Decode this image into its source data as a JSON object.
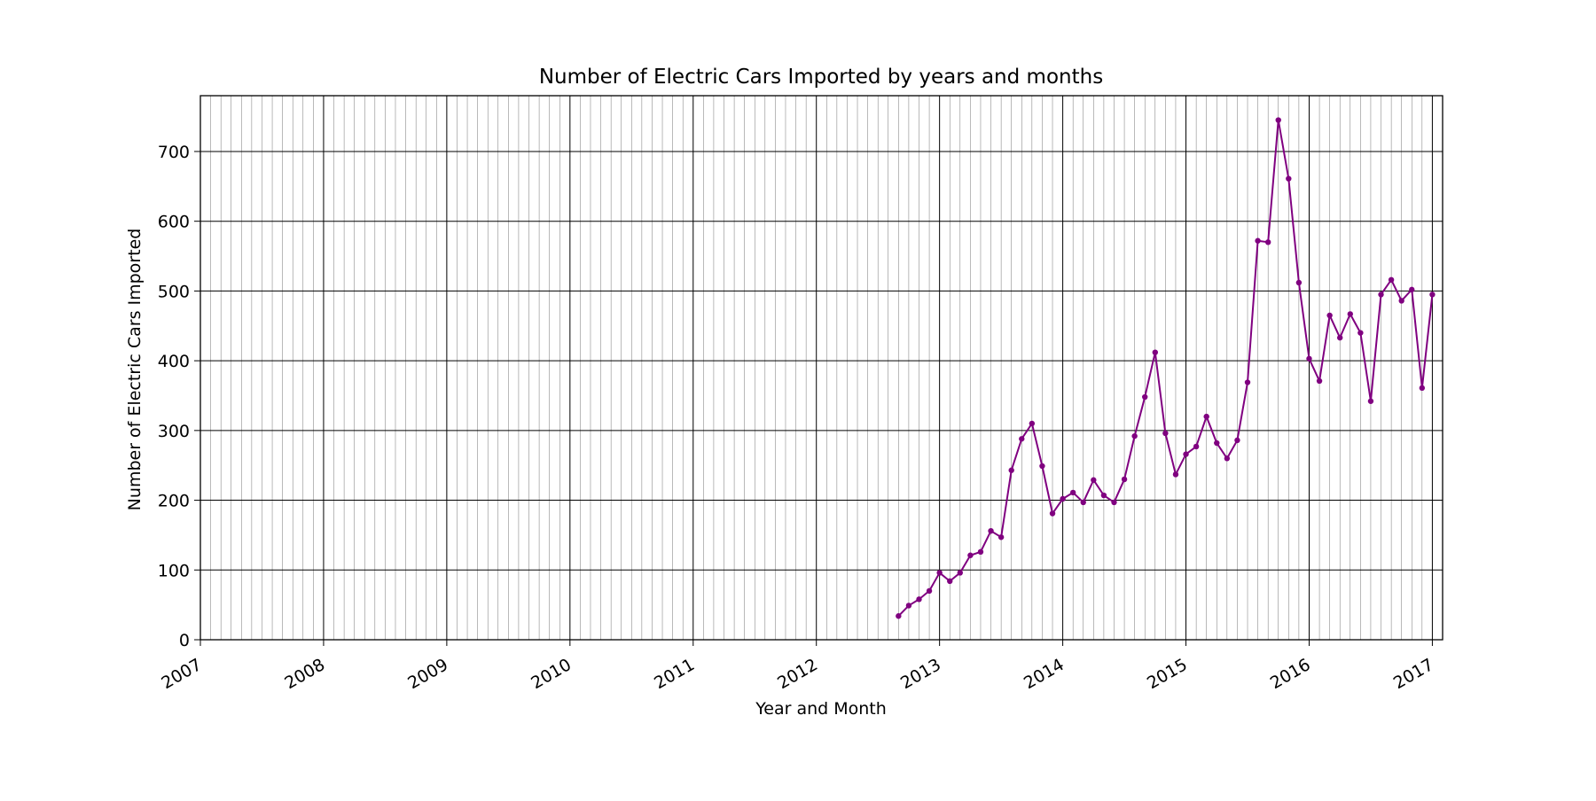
{
  "chart_data": {
    "type": "line",
    "title": "Number of Electric Cars Imported by years and months",
    "xlabel": "Year and Month",
    "ylabel": "Number of Electric Cars Imported",
    "xlim": [
      "2007-01",
      "2017-02"
    ],
    "ylim": [
      0,
      780
    ],
    "x_ticks": [
      "2007",
      "2008",
      "2009",
      "2010",
      "2011",
      "2012",
      "2013",
      "2014",
      "2015",
      "2016",
      "2017"
    ],
    "y_ticks": [
      0,
      100,
      200,
      300,
      400,
      500,
      600,
      700
    ],
    "grid": {
      "major": true,
      "minor": "monthly"
    },
    "series": [
      {
        "color": "#800080",
        "marker": "dot",
        "x": [
          "2012-09",
          "2012-10",
          "2012-11",
          "2012-12",
          "2013-01",
          "2013-02",
          "2013-03",
          "2013-04",
          "2013-05",
          "2013-06",
          "2013-07",
          "2013-08",
          "2013-09",
          "2013-10",
          "2013-11",
          "2013-12",
          "2014-01",
          "2014-02",
          "2014-03",
          "2014-04",
          "2014-05",
          "2014-06",
          "2014-07",
          "2014-08",
          "2014-09",
          "2014-10",
          "2014-11",
          "2014-12",
          "2015-01",
          "2015-02",
          "2015-03",
          "2015-04",
          "2015-05",
          "2015-06",
          "2015-07",
          "2015-08",
          "2015-09",
          "2015-10",
          "2015-11",
          "2015-12",
          "2016-01",
          "2016-02",
          "2016-03",
          "2016-04",
          "2016-05",
          "2016-06",
          "2016-07",
          "2016-08",
          "2016-09",
          "2016-10",
          "2016-11",
          "2016-12",
          "2017-01"
        ],
        "values": [
          34,
          49,
          58,
          70,
          96,
          84,
          96,
          121,
          126,
          156,
          147,
          243,
          288,
          310,
          249,
          181,
          202,
          211,
          197,
          229,
          207,
          197,
          230,
          292,
          348,
          412,
          296,
          237,
          266,
          277,
          320,
          282,
          260,
          286,
          369,
          572,
          570,
          745,
          661,
          512,
          403,
          371,
          465,
          433,
          467,
          440,
          342,
          495,
          516,
          486,
          502,
          361,
          495
        ]
      }
    ]
  }
}
